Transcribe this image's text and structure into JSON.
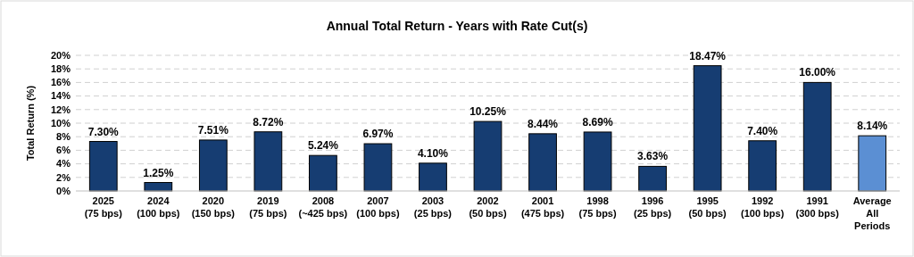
{
  "chart_data": {
    "type": "bar",
    "title": "Annual Total Return - Years with Rate Cut(s)",
    "ylabel": "Total Return (%)",
    "categories": [
      "2025\n(75 bps)",
      "2024\n(100 bps)",
      "2020\n(150 bps)",
      "2019\n(75 bps)",
      "2008\n(~425 bps)",
      "2007\n(100 bps)",
      "2003\n(25 bps)",
      "2002\n(50 bps)",
      "2001\n(475 bps)",
      "1998\n(75 bps)",
      "1996\n(25 bps)",
      "1995\n(50 bps)",
      "1992\n(100 bps)",
      "1991\n(300 bps)",
      "Average\nAll\nPeriods"
    ],
    "values": [
      7.3,
      1.25,
      7.51,
      8.72,
      5.24,
      6.97,
      4.1,
      10.25,
      8.44,
      8.69,
      3.63,
      18.47,
      7.4,
      16.0,
      8.14
    ],
    "value_labels": [
      "7.30%",
      "1.25%",
      "7.51%",
      "8.72%",
      "5.24%",
      "6.97%",
      "4.10%",
      "10.25%",
      "8.44%",
      "8.69%",
      "3.63%",
      "18.47%",
      "7.40%",
      "16.00%",
      "8.14%"
    ],
    "colors": [
      "#163d72",
      "#163d72",
      "#163d72",
      "#163d72",
      "#163d72",
      "#163d72",
      "#163d72",
      "#163d72",
      "#163d72",
      "#163d72",
      "#163d72",
      "#163d72",
      "#163d72",
      "#163d72",
      "#5b8fd3"
    ],
    "ylim": [
      0,
      20
    ],
    "yticks": [
      {
        "value": 0,
        "label": "0%"
      },
      {
        "value": 2,
        "label": "2%"
      },
      {
        "value": 4,
        "label": "4%"
      },
      {
        "value": 6,
        "label": "6%"
      },
      {
        "value": 8,
        "label": "8%"
      },
      {
        "value": 10,
        "label": "10%"
      },
      {
        "value": 12,
        "label": "12%"
      },
      {
        "value": 14,
        "label": "14%"
      },
      {
        "value": 16,
        "label": "16%"
      },
      {
        "value": 18,
        "label": "18%"
      },
      {
        "value": 20,
        "label": "20%"
      }
    ],
    "grid": "y"
  }
}
